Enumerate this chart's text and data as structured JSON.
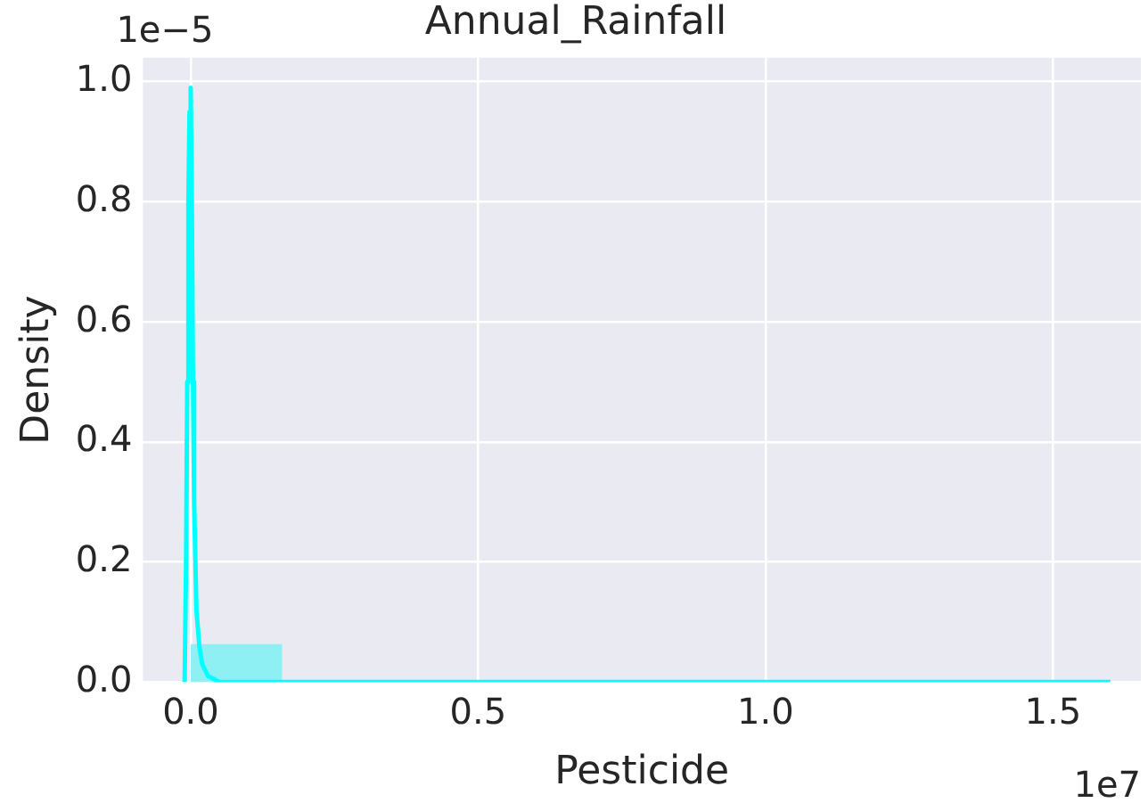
{
  "chart_data": {
    "type": "histogram",
    "title": "Annual_Rainfall",
    "xlabel": "Pesticide",
    "ylabel": "Density",
    "annotations": [
      "1e−5",
      "1e7"
    ],
    "xlim": [
      -0.083,
      1.653
    ],
    "ylim": [
      0,
      1.04
    ],
    "xticks": [
      {
        "value": 0,
        "label": "0.0"
      },
      {
        "value": 0.5,
        "label": "0.5"
      },
      {
        "value": 1,
        "label": "1.0"
      },
      {
        "value": 1.5,
        "label": "1.5"
      }
    ],
    "yticks": [
      {
        "value": 0,
        "label": "0.0"
      },
      {
        "value": 0.2,
        "label": "0.2"
      },
      {
        "value": 0.4,
        "label": "0.4"
      },
      {
        "value": 0.6,
        "label": "0.6"
      },
      {
        "value": 0.8,
        "label": "0.8"
      },
      {
        "value": 1,
        "label": "1.0"
      }
    ],
    "grid": true,
    "series": [
      {
        "type": "histogram",
        "color": "#8ef0f2",
        "bins": [
          0,
          0.159
        ],
        "values": [
          0.063
        ]
      },
      {
        "type": "line",
        "color": "#00ffff",
        "x": [
          -0.0105,
          -0.008,
          -0.006,
          -0.004,
          -0.002,
          0,
          0.002,
          0.004,
          0.006,
          0.01,
          0.015,
          0.02,
          0.03,
          0.05,
          0.1,
          1.6
        ],
        "values": [
          0,
          0.2,
          0.5,
          0.8,
          0.95,
          0.99,
          0.8,
          0.5,
          0.3,
          0.12,
          0.06,
          0.03,
          0.01,
          0,
          0,
          0
        ]
      }
    ]
  }
}
